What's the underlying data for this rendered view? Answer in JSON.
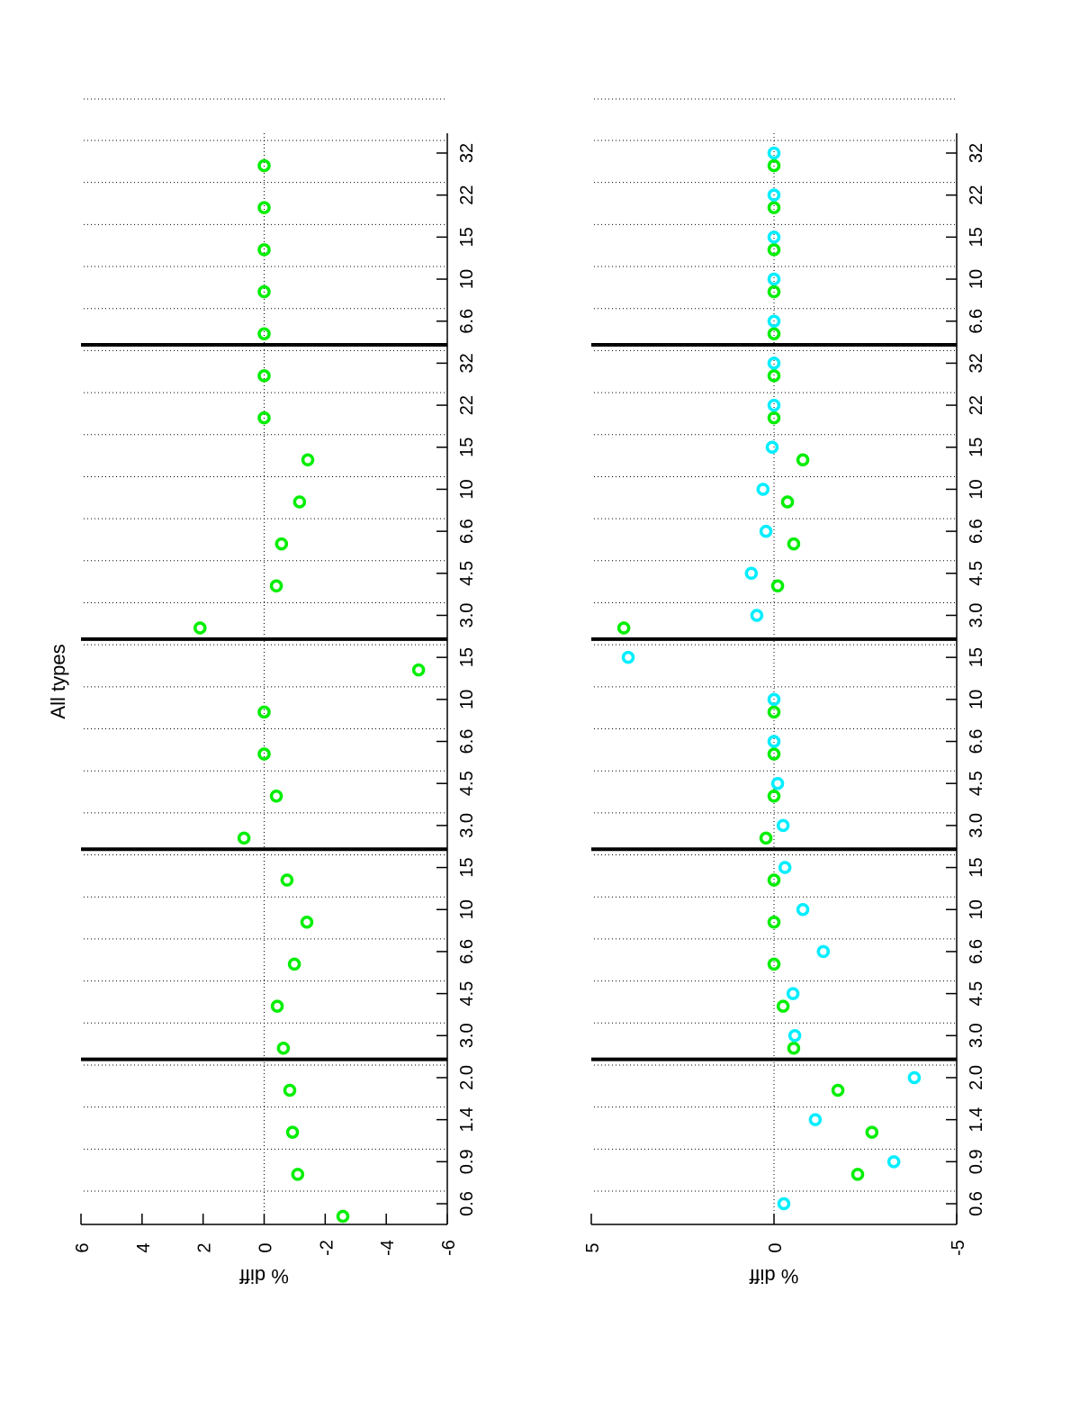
{
  "title": "All types",
  "chart_data": [
    {
      "type": "scatter",
      "panel": "top",
      "title": "All types",
      "ylabel": "% diff",
      "xlabel": "",
      "ylim": [
        -6,
        6
      ],
      "yticks": [
        "6",
        "4",
        "2",
        "0",
        "-2",
        "-4",
        "-6"
      ],
      "ytick_values": [
        6,
        4,
        2,
        0,
        -2,
        -4,
        -6
      ],
      "categories": [
        "0.6",
        "0.9",
        "1.4",
        "2.0",
        "3.0",
        "4.5",
        "6.6",
        "10",
        "15",
        "3.0",
        "4.5",
        "6.6",
        "10",
        "15",
        "3.0",
        "4.5",
        "6.6",
        "10",
        "15",
        "22",
        "32",
        "6.6",
        "10",
        "15",
        "22",
        "32"
      ],
      "group_separators_after": [
        3,
        8,
        13,
        20
      ],
      "grid": true,
      "series": [
        {
          "name": "green",
          "color": "#00ee00",
          "values": [
            -2.58,
            -1.1,
            -0.93,
            -0.84,
            -0.63,
            -0.43,
            -0.99,
            -1.4,
            -0.75,
            0.66,
            -0.4,
            0,
            0,
            -5.06,
            2.1,
            -0.4,
            -0.57,
            -1.16,
            -1.43,
            0,
            0,
            0,
            0,
            0,
            0,
            0
          ]
        }
      ]
    },
    {
      "type": "scatter",
      "panel": "bottom",
      "ylabel": "% diff",
      "xlabel": "",
      "ylim": [
        -5,
        5
      ],
      "yticks": [
        "5",
        "0",
        "-5"
      ],
      "ytick_values": [
        5,
        0,
        -5
      ],
      "categories": [
        "0.6",
        "0.9",
        "1.4",
        "2.0",
        "3.0",
        "4.5",
        "6.6",
        "10",
        "15",
        "3.0",
        "4.5",
        "6.6",
        "10",
        "15",
        "3.0",
        "4.5",
        "6.6",
        "10",
        "15",
        "22",
        "32",
        "6.6",
        "10",
        "15",
        "22",
        "32"
      ],
      "group_separators_after": [
        3,
        8,
        13,
        20
      ],
      "grid": true,
      "series": [
        {
          "name": "green",
          "color": "#00ee00",
          "values": [
            null,
            -2.29,
            -2.68,
            -1.75,
            -0.54,
            -0.25,
            0,
            0,
            0,
            0.22,
            0,
            0,
            0,
            null,
            4.11,
            -0.1,
            -0.54,
            -0.37,
            -0.79,
            0,
            0,
            0,
            0,
            0,
            0,
            0
          ]
        },
        {
          "name": "cyan",
          "color": "#00eeff",
          "values": [
            -0.27,
            -3.28,
            -1.13,
            -3.84,
            -0.57,
            -0.52,
            -1.35,
            -0.79,
            -0.3,
            -0.25,
            -0.1,
            0,
            0,
            3.99,
            0.47,
            0.62,
            0.22,
            0.3,
            0.05,
            0,
            0,
            0,
            0,
            0,
            0,
            0
          ]
        }
      ]
    }
  ]
}
